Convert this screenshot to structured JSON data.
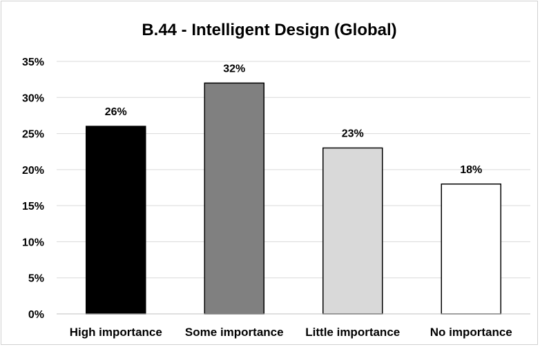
{
  "chart_data": {
    "type": "bar",
    "title": "B.44 - Intelligent Design (Global)",
    "categories": [
      "High importance",
      "Some importance",
      "Little importance",
      "No importance"
    ],
    "values": [
      26,
      32,
      23,
      18
    ],
    "data_labels": [
      "26%",
      "32%",
      "23%",
      "18%"
    ],
    "bar_colors": [
      "#000000",
      "#808080",
      "#d9d9d9",
      "#ffffff"
    ],
    "ylim": [
      0,
      35
    ],
    "yticks": [
      0,
      5,
      10,
      15,
      20,
      25,
      30,
      35
    ],
    "ytick_labels": [
      "0%",
      "5%",
      "10%",
      "15%",
      "20%",
      "25%",
      "30%",
      "35%"
    ],
    "xlabel": "",
    "ylabel": "",
    "grid": true,
    "legend": "none"
  }
}
